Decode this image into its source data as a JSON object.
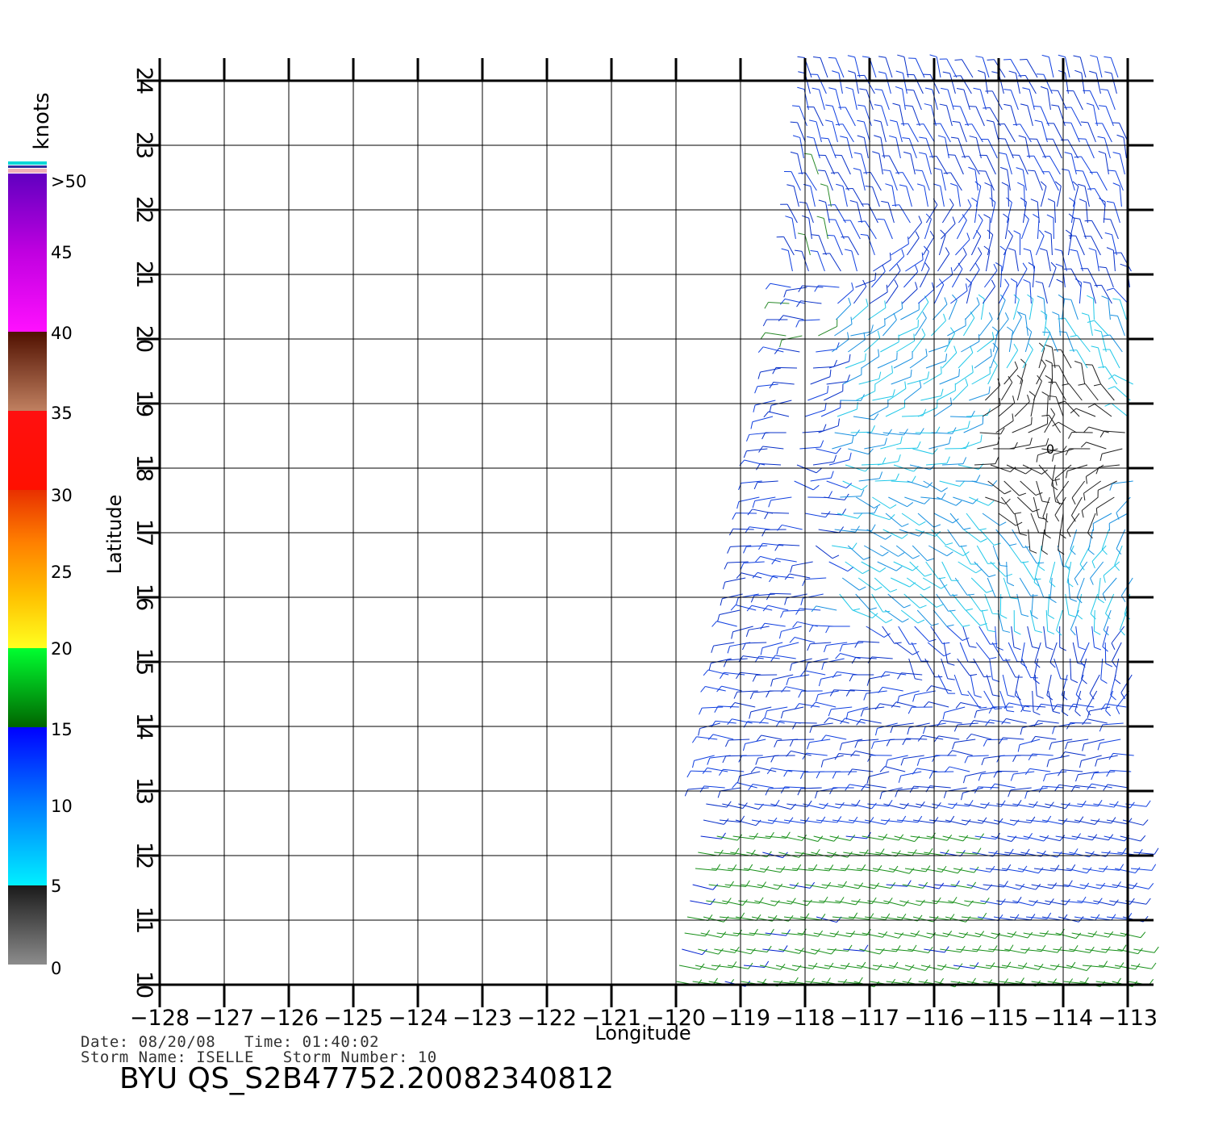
{
  "map": {
    "xlabel": "Longitude",
    "ylabel": "Latitude",
    "lon_range": [
      -128,
      -113
    ],
    "lat_range": [
      10,
      24
    ],
    "lon_ticks": [
      "−128",
      "−127",
      "−126",
      "−125",
      "−124",
      "−123",
      "−122",
      "−121",
      "−120",
      "−119",
      "−118",
      "−117",
      "−116",
      "−115",
      "−114",
      "−113"
    ],
    "lat_ticks": [
      "10",
      "11",
      "12",
      "13",
      "14",
      "15",
      "16",
      "17",
      "18",
      "19",
      "20",
      "21",
      "22",
      "23",
      "24"
    ],
    "grid": true,
    "storm_center_marker": "0",
    "storm_center": {
      "lon": -114.2,
      "lat": 18.3
    }
  },
  "colorbar": {
    "title": "knots",
    "labels": [
      ">50",
      "45",
      "40",
      "35",
      "30",
      "25",
      "20",
      "15",
      "10",
      "5",
      "0"
    ],
    "segments": [
      {
        "from": 0,
        "to": 5,
        "colors": [
          "#8c8c8c",
          "#1a1a1a"
        ]
      },
      {
        "from": 5,
        "to": 10,
        "colors": [
          "#00f0ff",
          "#0080ff"
        ]
      },
      {
        "from": 10,
        "to": 15,
        "colors": [
          "#0080ff",
          "#0000ff"
        ]
      },
      {
        "from": 15,
        "to": 20,
        "colors": [
          "#006400",
          "#00ff30"
        ]
      },
      {
        "from": 20,
        "to": 30,
        "colors": [
          "#ffff20",
          "#ffc000",
          "#ff8000",
          "#e83000"
        ]
      },
      {
        "from": 30,
        "to": 35,
        "colors": [
          "#ff1000",
          "#ff1010"
        ]
      },
      {
        "from": 35,
        "to": 40,
        "colors": [
          "#c08060",
          "#501000"
        ]
      },
      {
        "from": 40,
        "to": 50,
        "colors": [
          "#ff10ff",
          "#c000e0",
          "#6000c0"
        ]
      }
    ]
  },
  "swath": {
    "bounds": [
      {
        "lat": 10.0,
        "west": -120.0,
        "east": -112.9
      },
      {
        "lat": 13.0,
        "west": -119.5,
        "east": -112.9
      },
      {
        "lat": 17.0,
        "west": -118.8,
        "east": -112.9
      },
      {
        "lat": 20.0,
        "west": -118.3,
        "east": -112.9
      },
      {
        "lat": 24.0,
        "west": -117.9,
        "east": -113.0
      }
    ]
  },
  "info": {
    "date_line": "Date: 08/20/08   Time: 01:40:02",
    "storm_line": "Storm Name: ISELLE   Storm Number: 10",
    "id_line": "BYU QS_S2B47752.20082340812"
  }
}
